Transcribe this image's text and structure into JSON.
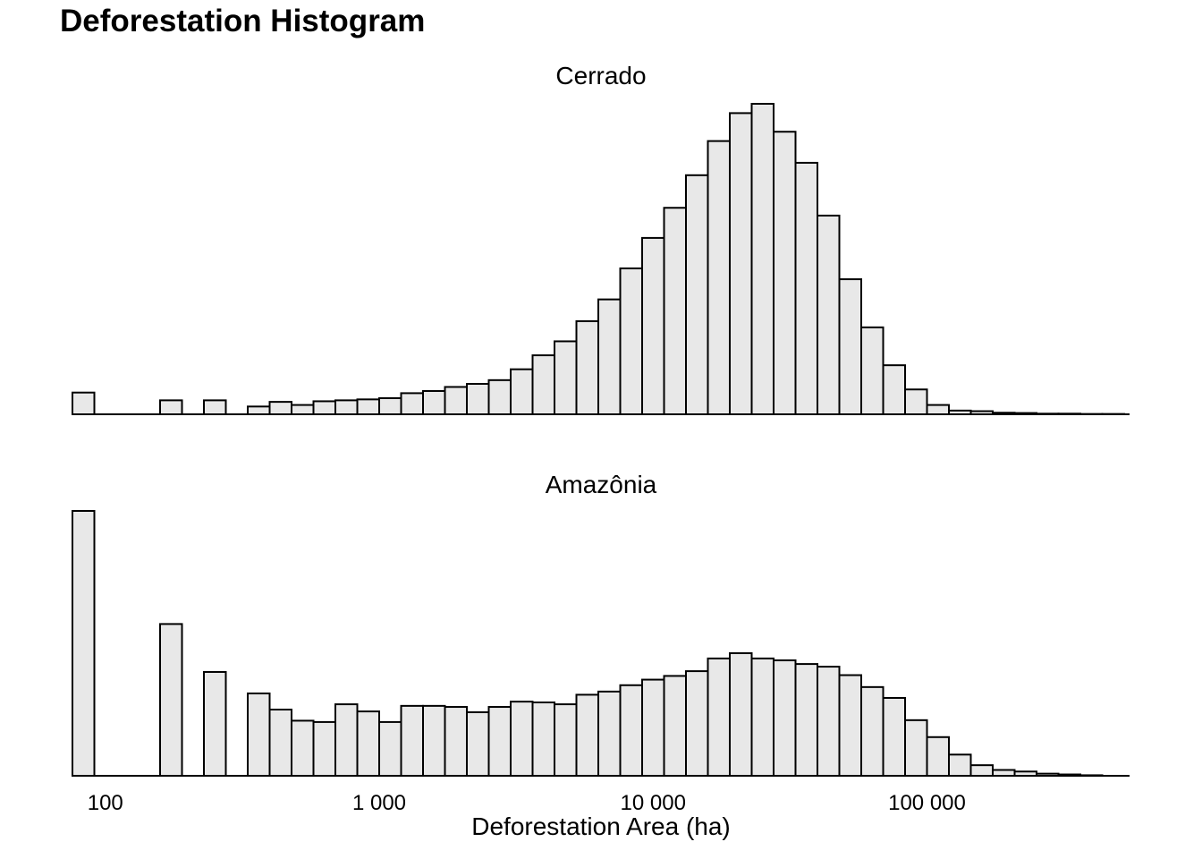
{
  "chart_data": {
    "type": "bar",
    "title": "Deforestation Histogram",
    "xlabel": "Deforestation Area (ha)",
    "ylabel": "",
    "x_scale": "log10",
    "x_ticks": [
      {
        "value": 100,
        "label": "100"
      },
      {
        "value": 1000,
        "label": "1 000"
      },
      {
        "value": 10000,
        "label": "10 000"
      },
      {
        "value": 100000,
        "label": "100 000"
      }
    ],
    "y_axis_shown": false,
    "grid": false,
    "bin_count": 48,
    "bin_width_log10": 0.08,
    "first_bin_left_log10": 1.88,
    "y_unit": "relative bar height (max = 1)",
    "panels": [
      {
        "name": "Cerrado",
        "values": [
          0.07,
          0,
          0,
          0,
          0.045,
          0,
          0.045,
          0,
          0.025,
          0.04,
          0.03,
          0.042,
          0.045,
          0.048,
          0.052,
          0.068,
          0.075,
          0.088,
          0.098,
          0.11,
          0.145,
          0.19,
          0.235,
          0.3,
          0.37,
          0.47,
          0.568,
          0.665,
          0.77,
          0.88,
          0.97,
          1.0,
          0.91,
          0.81,
          0.64,
          0.435,
          0.28,
          0.158,
          0.08,
          0.03,
          0.012,
          0.01,
          0.005,
          0.004,
          0.002,
          0.002,
          0.001,
          0.001
        ]
      },
      {
        "name": "Amazônia",
        "values": [
          1.0,
          0,
          0,
          0,
          0.573,
          0,
          0.392,
          0,
          0.311,
          0.25,
          0.208,
          0.203,
          0.27,
          0.243,
          0.203,
          0.264,
          0.264,
          0.26,
          0.24,
          0.26,
          0.28,
          0.277,
          0.27,
          0.306,
          0.318,
          0.342,
          0.363,
          0.377,
          0.395,
          0.443,
          0.463,
          0.443,
          0.436,
          0.422,
          0.412,
          0.38,
          0.335,
          0.294,
          0.21,
          0.146,
          0.08,
          0.04,
          0.022,
          0.016,
          0.008,
          0.005,
          0.002,
          0.0
        ]
      }
    ]
  }
}
